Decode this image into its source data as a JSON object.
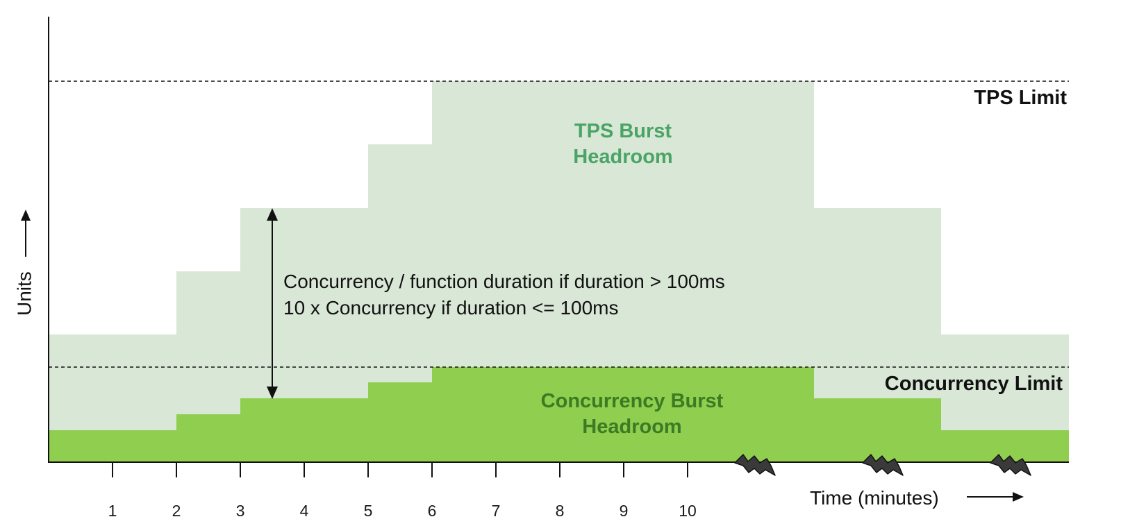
{
  "axes": {
    "y_title": "Units",
    "x_title": "Time (minutes)",
    "x_ticks": [
      "1",
      "2",
      "3",
      "4",
      "5",
      "6",
      "7",
      "8",
      "9",
      "10"
    ]
  },
  "limits": {
    "tps": "TPS Limit",
    "concurrency": "Concurrency Limit"
  },
  "regions": {
    "tps_headroom": [
      "TPS Burst",
      "Headroom"
    ],
    "concurrency_headroom": [
      "Concurrency Burst",
      "Headroom"
    ]
  },
  "formula": [
    "Concurrency / function duration if duration > 100ms",
    "10 x Concurrency if duration <= 100ms"
  ],
  "colors": {
    "tps_fill": "#d9e7d6",
    "concurrency_fill": "#8fce4f",
    "tps_text": "#4aa466",
    "concurrency_text": "#3c7a23",
    "axis": "#111111"
  },
  "icons": [
    "lightning-icon",
    "lightning-icon",
    "lightning-icon"
  ]
}
